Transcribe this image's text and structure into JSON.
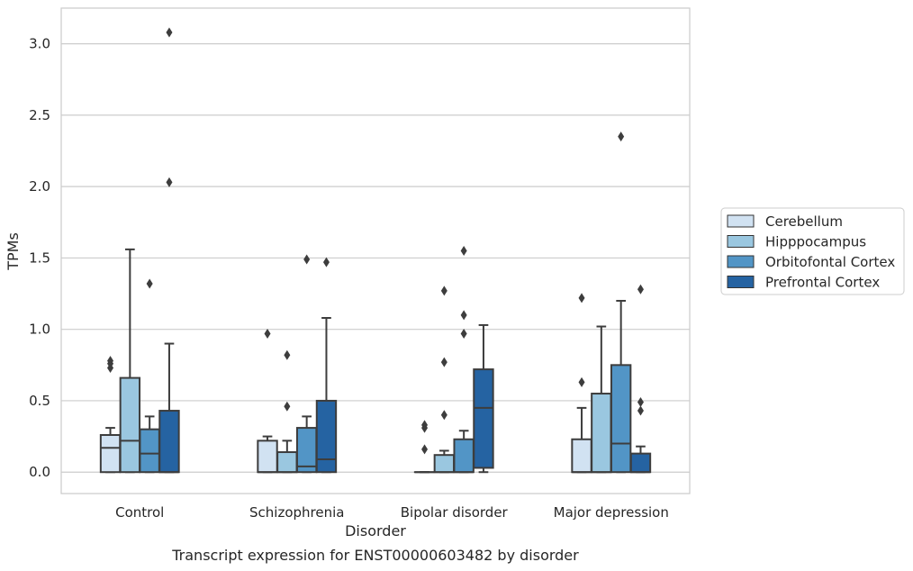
{
  "caption": "Transcript expression for ENST00000603482 by disorder",
  "chart_data": {
    "type": "box",
    "title": "",
    "xlabel": "Disorder",
    "ylabel": "TPMs",
    "ylim": [
      -0.15,
      3.25
    ],
    "y_ticks": [
      "0.0",
      "0.5",
      "1.0",
      "1.5",
      "2.0",
      "2.5",
      "3.0"
    ],
    "grid": "horizontal",
    "legend_position": "right",
    "categories": [
      "Control",
      "Schizophrenia",
      "Bipolar disorder",
      "Major depression"
    ],
    "series": [
      {
        "name": "Cerebellum",
        "color": "#d1e2f2",
        "boxes": [
          {
            "q1": 0.0,
            "median": 0.17,
            "q3": 0.26,
            "whisker_low": 0.0,
            "whisker_high": 0.31,
            "outliers": [
              0.73,
              0.76,
              0.78
            ]
          },
          {
            "q1": 0.0,
            "median": 0.0,
            "q3": 0.22,
            "whisker_low": 0.0,
            "whisker_high": 0.25,
            "outliers": [
              0.97
            ]
          },
          {
            "q1": 0.0,
            "median": 0.0,
            "q3": 0.0,
            "whisker_low": 0.0,
            "whisker_high": 0.0,
            "outliers": [
              0.16,
              0.31,
              0.33
            ]
          },
          {
            "q1": 0.0,
            "median": 0.0,
            "q3": 0.23,
            "whisker_low": 0.0,
            "whisker_high": 0.45,
            "outliers": [
              0.63,
              1.22
            ]
          }
        ]
      },
      {
        "name": "Hipppocampus",
        "color": "#9ac7e0",
        "boxes": [
          {
            "q1": 0.0,
            "median": 0.22,
            "q3": 0.66,
            "whisker_low": 0.0,
            "whisker_high": 1.56,
            "outliers": []
          },
          {
            "q1": 0.0,
            "median": 0.0,
            "q3": 0.14,
            "whisker_low": 0.0,
            "whisker_high": 0.22,
            "outliers": [
              0.46,
              0.82
            ]
          },
          {
            "q1": 0.0,
            "median": 0.0,
            "q3": 0.12,
            "whisker_low": 0.0,
            "whisker_high": 0.15,
            "outliers": [
              0.4,
              0.77,
              1.27
            ]
          },
          {
            "q1": 0.0,
            "median": 0.0,
            "q3": 0.55,
            "whisker_low": 0.0,
            "whisker_high": 1.02,
            "outliers": []
          }
        ]
      },
      {
        "name": "Orbitofontal Cortex",
        "color": "#5295c6",
        "boxes": [
          {
            "q1": 0.0,
            "median": 0.13,
            "q3": 0.3,
            "whisker_low": 0.0,
            "whisker_high": 0.39,
            "outliers": [
              1.32
            ]
          },
          {
            "q1": 0.0,
            "median": 0.04,
            "q3": 0.31,
            "whisker_low": 0.0,
            "whisker_high": 0.39,
            "outliers": [
              1.49
            ]
          },
          {
            "q1": 0.0,
            "median": 0.0,
            "q3": 0.23,
            "whisker_low": 0.0,
            "whisker_high": 0.29,
            "outliers": [
              0.97,
              1.1,
              1.55
            ]
          },
          {
            "q1": 0.0,
            "median": 0.2,
            "q3": 0.75,
            "whisker_low": 0.0,
            "whisker_high": 1.2,
            "outliers": [
              2.35
            ]
          }
        ]
      },
      {
        "name": "Prefrontal Cortex",
        "color": "#2563a2",
        "boxes": [
          {
            "q1": 0.0,
            "median": 0.0,
            "q3": 0.43,
            "whisker_low": 0.0,
            "whisker_high": 0.9,
            "outliers": [
              2.03,
              3.08
            ]
          },
          {
            "q1": 0.0,
            "median": 0.09,
            "q3": 0.5,
            "whisker_low": 0.0,
            "whisker_high": 1.08,
            "outliers": [
              1.47
            ]
          },
          {
            "q1": 0.03,
            "median": 0.45,
            "q3": 0.72,
            "whisker_low": 0.0,
            "whisker_high": 1.03,
            "outliers": []
          },
          {
            "q1": 0.0,
            "median": 0.0,
            "q3": 0.13,
            "whisker_low": 0.0,
            "whisker_high": 0.18,
            "outliers": [
              0.43,
              0.49,
              1.28
            ]
          }
        ]
      }
    ]
  }
}
